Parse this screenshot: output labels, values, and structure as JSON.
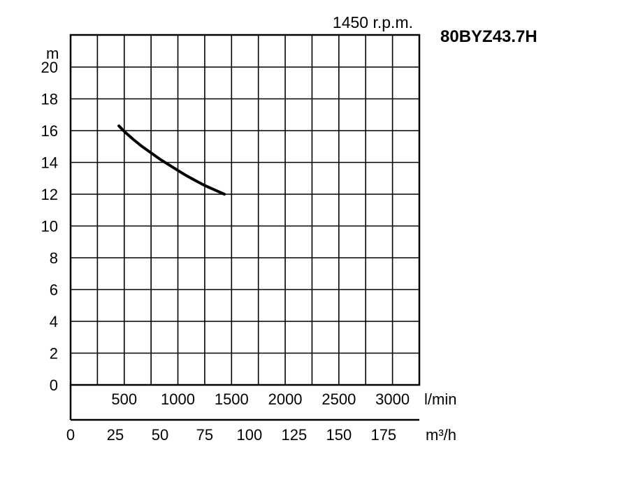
{
  "chart_data": {
    "type": "line",
    "title": "1450 r.p.m.",
    "model": "80BYZ43.7H",
    "ylabel": "m",
    "ylim": [
      0,
      20
    ],
    "y_ticks": [
      "0",
      "2",
      "4",
      "6",
      "8",
      "10",
      "12",
      "14",
      "16",
      "18",
      "20"
    ],
    "x_primary": {
      "unit": "l/min",
      "ticks": [
        "500",
        "1000",
        "1500",
        "2000",
        "2500",
        "3000"
      ]
    },
    "x_secondary": {
      "unit": "m³/h",
      "ticks": [
        "0",
        "25",
        "50",
        "75",
        "100",
        "125",
        "150",
        "175"
      ]
    },
    "xlim_m3h": [
      0,
      195
    ],
    "grid": true,
    "series": [
      {
        "x": [
          27,
          30,
          35,
          40,
          45,
          50,
          55,
          60,
          65,
          70,
          75,
          80,
          86
        ],
        "y": [
          16.3,
          15.95,
          15.45,
          15.0,
          14.6,
          14.2,
          13.85,
          13.5,
          13.15,
          12.85,
          12.55,
          12.3,
          12.0
        ]
      }
    ]
  }
}
